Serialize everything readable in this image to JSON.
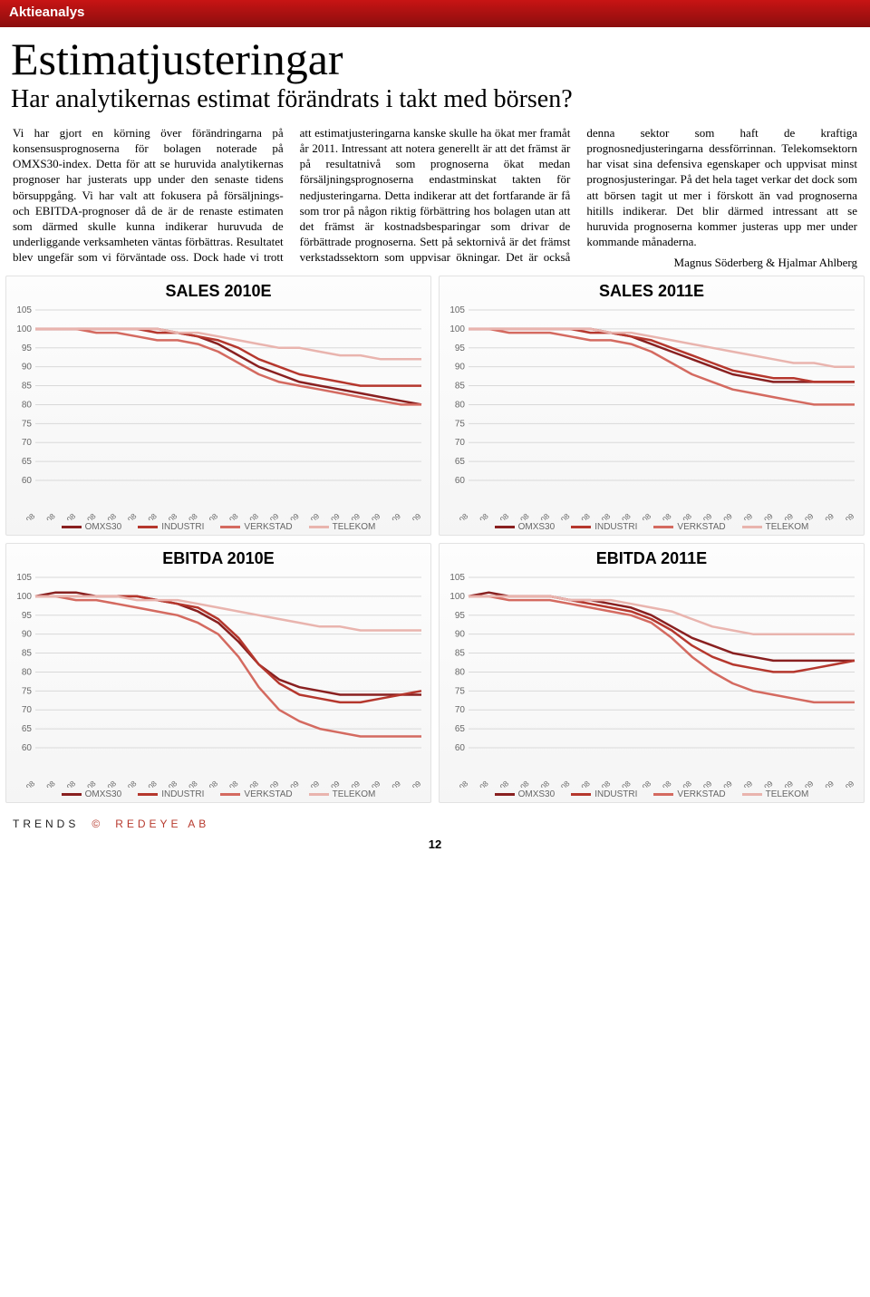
{
  "header": {
    "category": "Aktieanalys"
  },
  "title": "Estimatjusteringar",
  "subtitle": "Har analytikernas estimat förändrats i takt med börsen?",
  "body": "Vi har gjort en körning över förändringarna på konsensusprognoserna för bolagen noterade på OMXS30-index. Detta för att se huruvida analytikernas prognoser har justerats upp under den senaste tidens börsuppgång. Vi har valt att fokusera på försäljnings- och EBITDA-prognoser då de är de renaste estimaten som därmed skulle kunna indikerar huruvuda de underliggande verksamheten väntas förbättras. Resultatet blev ungefär som vi förväntade oss. Dock hade vi trott att estimatjusteringarna kanske skulle ha ökat mer framåt år 2011. Intressant att notera generellt är att det främst är på resultatnivå som prognoserna ökat medan försäljningsprognoserna endastminskat takten för nedjusteringarna. Detta indikerar att det fortfarande är få som tror på någon riktig förbättring hos bolagen utan att det främst är kostnadsbesparingar som drivar de förbättrade prognoserna. Sett på sektornivå är det främst verkstadssektorn som uppvisar ökningar. Det är också denna sektor som haft de kraftiga prognosnedjusteringarna dessförrinnan. Telekomsektorn har visat sina defensiva egenskaper och uppvisat minst prognosjusteringar. På det hela taget verkar det dock som att börsen tagit ut mer i förskott än vad prognoserna hitills indikerar. Det blir därmed intressant att se huruvida prognoserna kommer justeras upp mer under kommande månaderna.",
  "byline": "Magnus Söderberg & Hjalmar Ahlberg",
  "chart_common": {
    "x_labels": [
      "jan-08",
      "feb-08",
      "mar-08",
      "apr-08",
      "maj-08",
      "jun-08",
      "jul-08",
      "aug-08",
      "sep-08",
      "okt-08",
      "nov-08",
      "dec-08",
      "jan-09",
      "feb-09",
      "mar-09",
      "apr-09",
      "maj-09",
      "jun-09",
      "jul-09",
      "aug-09"
    ],
    "y_min": 60,
    "y_max": 105,
    "y_step": 5,
    "y_ticks": [
      60,
      65,
      70,
      75,
      80,
      85,
      90,
      95,
      100,
      105
    ],
    "grid_color": "#d9d9d9",
    "bg_color": "#ffffff",
    "axis_font": "Arial",
    "axis_fontsize": 10,
    "axis_color": "#666666",
    "title_fontsize": 18,
    "line_width": 2.5,
    "legend": [
      {
        "label": "OMXS30",
        "color": "#892020"
      },
      {
        "label": "INDUSTRI",
        "color": "#b5372d"
      },
      {
        "label": "VERKSTAD",
        "color": "#d46a60"
      },
      {
        "label": "TELEKOM",
        "color": "#e9b4ae"
      }
    ]
  },
  "charts": [
    {
      "title": "SALES 2010E",
      "series": [
        {
          "color": "#892020",
          "values": [
            100,
            100,
            100,
            100,
            100,
            100,
            100,
            99,
            98,
            96,
            93,
            90,
            88,
            86,
            85,
            84,
            83,
            82,
            81,
            80
          ]
        },
        {
          "color": "#b5372d",
          "values": [
            100,
            100,
            100,
            100,
            100,
            100,
            99,
            99,
            98,
            97,
            95,
            92,
            90,
            88,
            87,
            86,
            85,
            85,
            85,
            85
          ]
        },
        {
          "color": "#d46a60",
          "values": [
            100,
            100,
            100,
            99,
            99,
            98,
            97,
            97,
            96,
            94,
            91,
            88,
            86,
            85,
            84,
            83,
            82,
            81,
            80,
            80
          ]
        },
        {
          "color": "#e9b4ae",
          "values": [
            100,
            100,
            100,
            100,
            100,
            100,
            100,
            99,
            99,
            98,
            97,
            96,
            95,
            95,
            94,
            93,
            93,
            92,
            92,
            92
          ]
        }
      ]
    },
    {
      "title": "SALES 2011E",
      "series": [
        {
          "color": "#892020",
          "values": [
            100,
            100,
            100,
            100,
            100,
            100,
            100,
            99,
            98,
            96,
            94,
            92,
            90,
            88,
            87,
            86,
            86,
            86,
            86,
            86
          ]
        },
        {
          "color": "#b5372d",
          "values": [
            100,
            100,
            100,
            100,
            100,
            100,
            99,
            99,
            98,
            97,
            95,
            93,
            91,
            89,
            88,
            87,
            87,
            86,
            86,
            86
          ]
        },
        {
          "color": "#d46a60",
          "values": [
            100,
            100,
            99,
            99,
            99,
            98,
            97,
            97,
            96,
            94,
            91,
            88,
            86,
            84,
            83,
            82,
            81,
            80,
            80,
            80
          ]
        },
        {
          "color": "#e9b4ae",
          "values": [
            100,
            100,
            100,
            100,
            100,
            100,
            100,
            99,
            99,
            98,
            97,
            96,
            95,
            94,
            93,
            92,
            91,
            91,
            90,
            90
          ]
        }
      ]
    },
    {
      "title": "EBITDA 2010E",
      "series": [
        {
          "color": "#892020",
          "values": [
            100,
            101,
            101,
            100,
            100,
            100,
            99,
            98,
            96,
            93,
            88,
            82,
            78,
            76,
            75,
            74,
            74,
            74,
            74,
            74
          ]
        },
        {
          "color": "#b5372d",
          "values": [
            100,
            100,
            100,
            100,
            100,
            100,
            99,
            98,
            97,
            94,
            89,
            82,
            77,
            74,
            73,
            72,
            72,
            73,
            74,
            75
          ]
        },
        {
          "color": "#d46a60",
          "values": [
            100,
            100,
            99,
            99,
            98,
            97,
            96,
            95,
            93,
            90,
            84,
            76,
            70,
            67,
            65,
            64,
            63,
            63,
            63,
            63
          ]
        },
        {
          "color": "#e9b4ae",
          "values": [
            100,
            100,
            100,
            100,
            100,
            99,
            99,
            99,
            98,
            97,
            96,
            95,
            94,
            93,
            92,
            92,
            91,
            91,
            91,
            91
          ]
        }
      ]
    },
    {
      "title": "EBITDA 2011E",
      "series": [
        {
          "color": "#892020",
          "values": [
            100,
            101,
            100,
            100,
            100,
            99,
            99,
            98,
            97,
            95,
            92,
            89,
            87,
            85,
            84,
            83,
            83,
            83,
            83,
            83
          ]
        },
        {
          "color": "#b5372d",
          "values": [
            100,
            100,
            100,
            100,
            100,
            99,
            98,
            97,
            96,
            94,
            91,
            87,
            84,
            82,
            81,
            80,
            80,
            81,
            82,
            83
          ]
        },
        {
          "color": "#d46a60",
          "values": [
            100,
            100,
            99,
            99,
            99,
            98,
            97,
            96,
            95,
            93,
            89,
            84,
            80,
            77,
            75,
            74,
            73,
            72,
            72,
            72
          ]
        },
        {
          "color": "#e9b4ae",
          "values": [
            100,
            100,
            100,
            100,
            100,
            99,
            99,
            99,
            98,
            97,
            96,
            94,
            92,
            91,
            90,
            90,
            90,
            90,
            90,
            90
          ]
        }
      ]
    }
  ],
  "footer": {
    "left": "TRENDS",
    "copy": "©",
    "right": "REDEYE AB",
    "page": "12"
  }
}
